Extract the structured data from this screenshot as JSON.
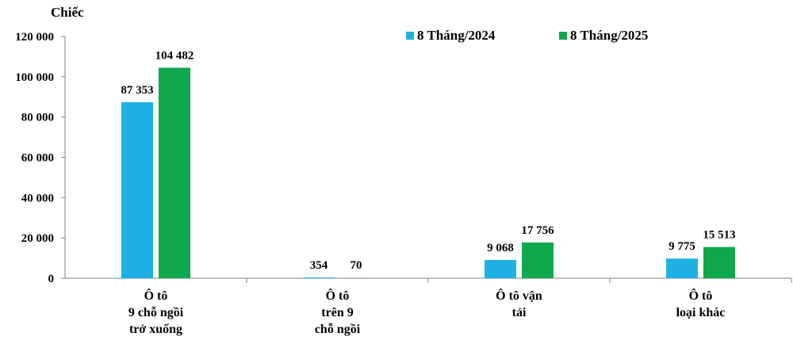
{
  "chart_data": {
    "type": "bar",
    "unit_label": "Chiếc",
    "categories": [
      [
        "Ô tô",
        "9 chỗ ngồi",
        "trở xuống"
      ],
      [
        "Ô tô",
        "trên 9",
        "chỗ ngồi"
      ],
      [
        "Ô tô vận",
        "tải"
      ],
      [
        "Ô tô",
        "loại khác"
      ]
    ],
    "series": [
      {
        "name": "8 Tháng/2024",
        "values": [
          87353,
          354,
          9068,
          9775
        ],
        "labels": [
          "87 353",
          "354",
          "9 068",
          "9 775"
        ]
      },
      {
        "name": "8 Tháng/2025",
        "values": [
          104482,
          70,
          17756,
          15513
        ],
        "labels": [
          "104 482",
          "70",
          "17 756",
          "15 513"
        ]
      }
    ],
    "ylim": [
      0,
      120000
    ],
    "yticks": [
      0,
      20000,
      40000,
      60000,
      80000,
      100000,
      120000
    ],
    "ytick_labels": [
      "0",
      "20 000",
      "40 000",
      "60 000",
      "80 000",
      "100 000",
      "120 000"
    ],
    "legend_position": "top-right",
    "colors": [
      "#1fb1e6",
      "#10a84c"
    ]
  }
}
